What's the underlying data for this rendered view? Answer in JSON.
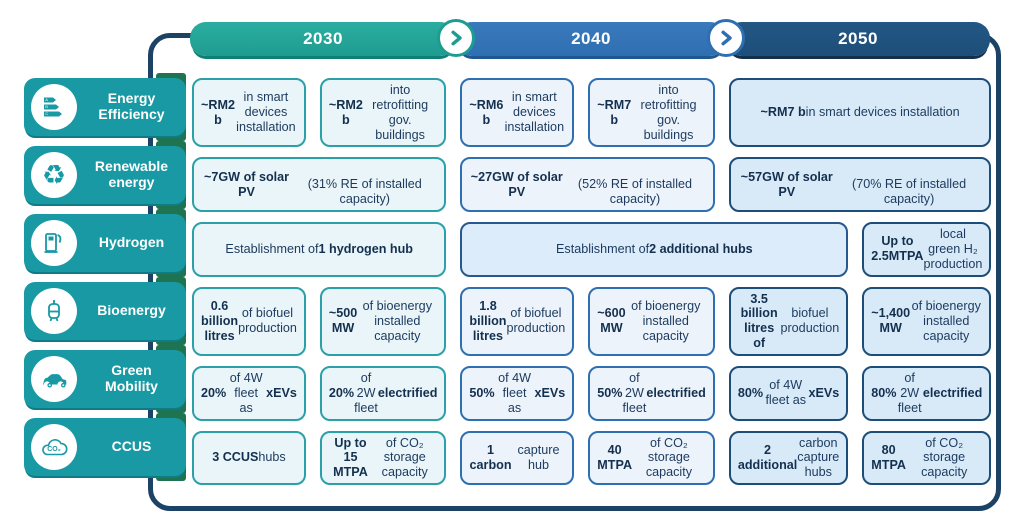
{
  "header": {
    "years": [
      {
        "label": "2030"
      },
      {
        "label": "2040"
      },
      {
        "label": "2050"
      }
    ],
    "chevron_icon": "chevron-right"
  },
  "sidebar": {
    "items": [
      {
        "label": "Energy Efficiency",
        "icon": "energy-rating-icon"
      },
      {
        "label": "Renewable energy",
        "icon": "recycle-icon"
      },
      {
        "label": "Hydrogen",
        "icon": "fuel-pump-icon"
      },
      {
        "label": "Bioenergy",
        "icon": "biogas-tank-icon"
      },
      {
        "label": "Green Mobility",
        "icon": "car-icon"
      },
      {
        "label": "CCUS",
        "icon": "co2-cloud-icon"
      }
    ]
  },
  "cards": {
    "ee_2030_a": [
      {
        "t": "~RM2 b",
        "b": true
      },
      {
        "t": " in smart devices installation"
      }
    ],
    "ee_2030_b": [
      {
        "t": "~RM2 b",
        "b": true
      },
      {
        "t": " into retrofitting gov. buildings"
      }
    ],
    "ee_2040_a": [
      {
        "t": "~RM6 b",
        "b": true
      },
      {
        "t": " in smart devices installation"
      }
    ],
    "ee_2040_b": [
      {
        "t": "~RM7 b",
        "b": true
      },
      {
        "t": " into retrofitting gov. buildings"
      }
    ],
    "ee_2050": [
      {
        "t": "~RM7 b",
        "b": true
      },
      {
        "t": " in smart devices installation"
      }
    ],
    "re_2030": [
      {
        "t": "~7GW of solar PV",
        "b": true
      },
      {
        "t": "\n(31% RE of installed capacity)"
      }
    ],
    "re_2040": [
      {
        "t": "~27GW of solar PV",
        "b": true
      },
      {
        "t": "\n(52% RE of installed capacity)"
      }
    ],
    "re_2050": [
      {
        "t": "~57GW of solar PV",
        "b": true
      },
      {
        "t": "\n(70% RE of installed capacity)"
      }
    ],
    "h2_2030": [
      {
        "t": "Establishment of "
      },
      {
        "t": "1 hydrogen hub",
        "b": true
      }
    ],
    "h2_mid": [
      {
        "t": "Establishment of "
      },
      {
        "t": "2 additional hubs",
        "b": true
      }
    ],
    "h2_2050": [
      {
        "t": "Up to 2.5MTPA",
        "b": true
      },
      {
        "t": " local green H₂ production"
      }
    ],
    "bio_2030_a": [
      {
        "t": "0.6 billion litres",
        "b": true
      },
      {
        "t": " of biofuel production"
      }
    ],
    "bio_2030_b": [
      {
        "t": "~500 MW",
        "b": true
      },
      {
        "t": " of bioenergy installed capacity"
      }
    ],
    "bio_2040_a": [
      {
        "t": "1.8 billion litres",
        "b": true
      },
      {
        "t": " of biofuel production"
      }
    ],
    "bio_2040_b": [
      {
        "t": "~600 MW",
        "b": true
      },
      {
        "t": " of bioenergy installed capacity"
      }
    ],
    "bio_2050_a": [
      {
        "t": "3.5 billion litres of",
        "b": true
      },
      {
        "t": " biofuel production"
      }
    ],
    "bio_2050_b": [
      {
        "t": "~1,400 MW",
        "b": true
      },
      {
        "t": " of bioenergy installed capacity"
      }
    ],
    "gm_2030_a": [
      {
        "t": "20%",
        "b": true
      },
      {
        "t": " of 4W fleet as "
      },
      {
        "t": "xEVs",
        "b": true
      }
    ],
    "gm_2030_b": [
      {
        "t": "20%",
        "b": true
      },
      {
        "t": " of 2W fleet "
      },
      {
        "t": "electrified",
        "b": true
      }
    ],
    "gm_2040_a": [
      {
        "t": "50%",
        "b": true
      },
      {
        "t": " of 4W fleet as "
      },
      {
        "t": "xEVs",
        "b": true
      }
    ],
    "gm_2040_b": [
      {
        "t": "50%",
        "b": true
      },
      {
        "t": " of 2W fleet "
      },
      {
        "t": "electrified",
        "b": true
      }
    ],
    "gm_2050_a": [
      {
        "t": "80%",
        "b": true
      },
      {
        "t": " of 4W fleet as "
      },
      {
        "t": "xEVs",
        "b": true
      }
    ],
    "gm_2050_b": [
      {
        "t": "80%",
        "b": true
      },
      {
        "t": " of 2W fleet "
      },
      {
        "t": "electrified",
        "b": true
      }
    ],
    "ccus_2030_a": [
      {
        "t": "3 CCUS",
        "b": true
      },
      {
        "t": " hubs"
      }
    ],
    "ccus_2030_b": [
      {
        "t": "Up to 15 MTPA",
        "b": true
      },
      {
        "t": " of CO₂ storage capacity"
      }
    ],
    "ccus_2040_a": [
      {
        "t": "1 carbon",
        "b": true
      },
      {
        "t": " capture hub"
      }
    ],
    "ccus_2040_b": [
      {
        "t": "40 MTPA",
        "b": true
      },
      {
        "t": " of CO₂ storage capacity"
      }
    ],
    "ccus_2050_a": [
      {
        "t": "2 additional",
        "b": true
      },
      {
        "t": " carbon capture hubs"
      }
    ],
    "ccus_2050_b": [
      {
        "t": "80 MTPA",
        "b": true
      },
      {
        "t": " of CO₂ storage capacity"
      }
    ]
  },
  "colors": {
    "teal_2030": "#1f9c90",
    "blue_2040": "#2e6fb2",
    "navy_2050": "#1d4e79",
    "sidebar_teal": "#1899a4",
    "frame_navy": "#1c4366",
    "connector_green": "#1e7450",
    "card_bg_2030": "#e9f5f8",
    "card_bg_2040": "#ecf3fb",
    "card_bg_2050": "#d8eaf8",
    "text_navy": "#1c3a5e"
  }
}
